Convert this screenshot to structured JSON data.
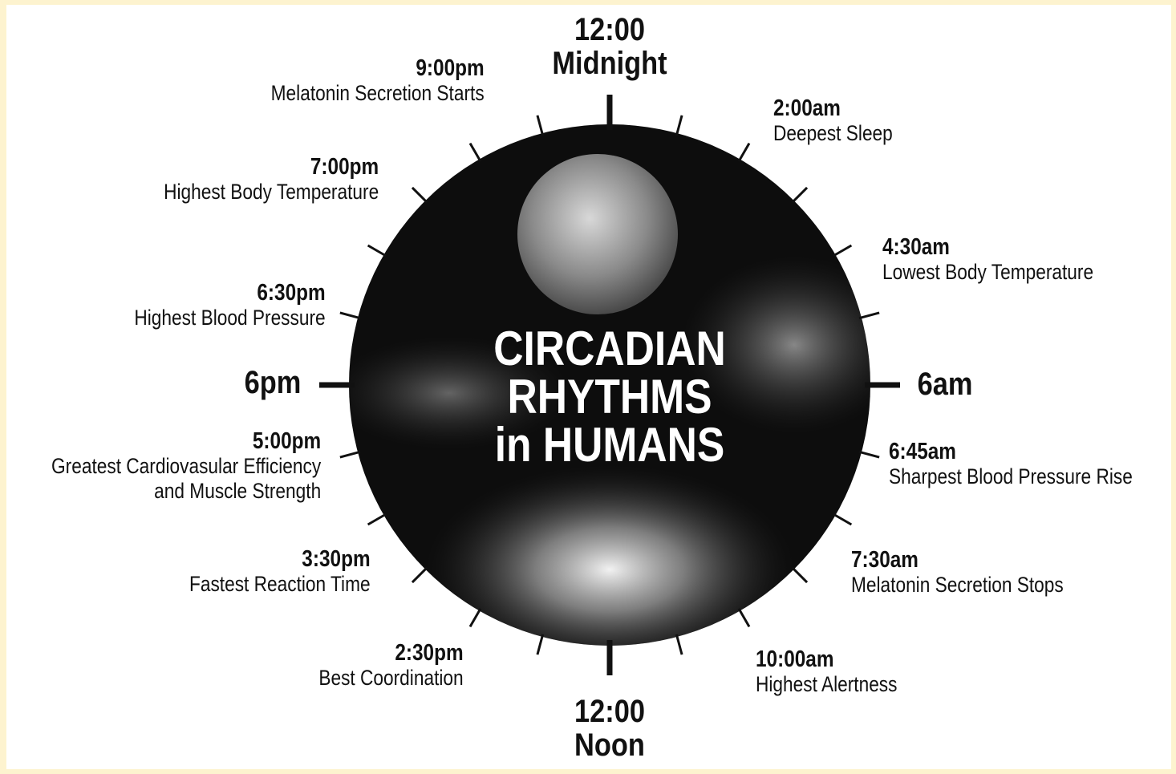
{
  "title": [
    "CIRCADIAN",
    "RHYTHMS",
    "in HUMANS"
  ],
  "cardinals": {
    "top": [
      "12:00",
      "Midnight"
    ],
    "right": [
      "6am"
    ],
    "bottom": [
      "12:00",
      "Noon"
    ],
    "left": [
      "6pm"
    ]
  },
  "events": [
    {
      "time": "9:00pm",
      "description": [
        "Melatonin Secretion Starts"
      ]
    },
    {
      "time": "7:00pm",
      "description": [
        "Highest Body Temperature"
      ]
    },
    {
      "time": "6:30pm",
      "description": [
        "Highest Blood Pressure"
      ]
    },
    {
      "time": "5:00pm",
      "description": [
        "Greatest Cardiovasular Efficiency",
        "and Muscle Strength"
      ]
    },
    {
      "time": "3:30pm",
      "description": [
        "Fastest Reaction Time"
      ]
    },
    {
      "time": "2:30pm",
      "description": [
        "Best Coordination"
      ]
    },
    {
      "time": "2:00am",
      "description": [
        "Deepest Sleep"
      ]
    },
    {
      "time": "4:30am",
      "description": [
        "Lowest Body Temperature"
      ]
    },
    {
      "time": "6:45am",
      "description": [
        "Sharpest Blood Pressure Rise"
      ]
    },
    {
      "time": "7:30am",
      "description": [
        "Melatonin Secretion Stops"
      ]
    },
    {
      "time": "10:00am",
      "description": [
        "Highest Alertness"
      ]
    }
  ]
}
